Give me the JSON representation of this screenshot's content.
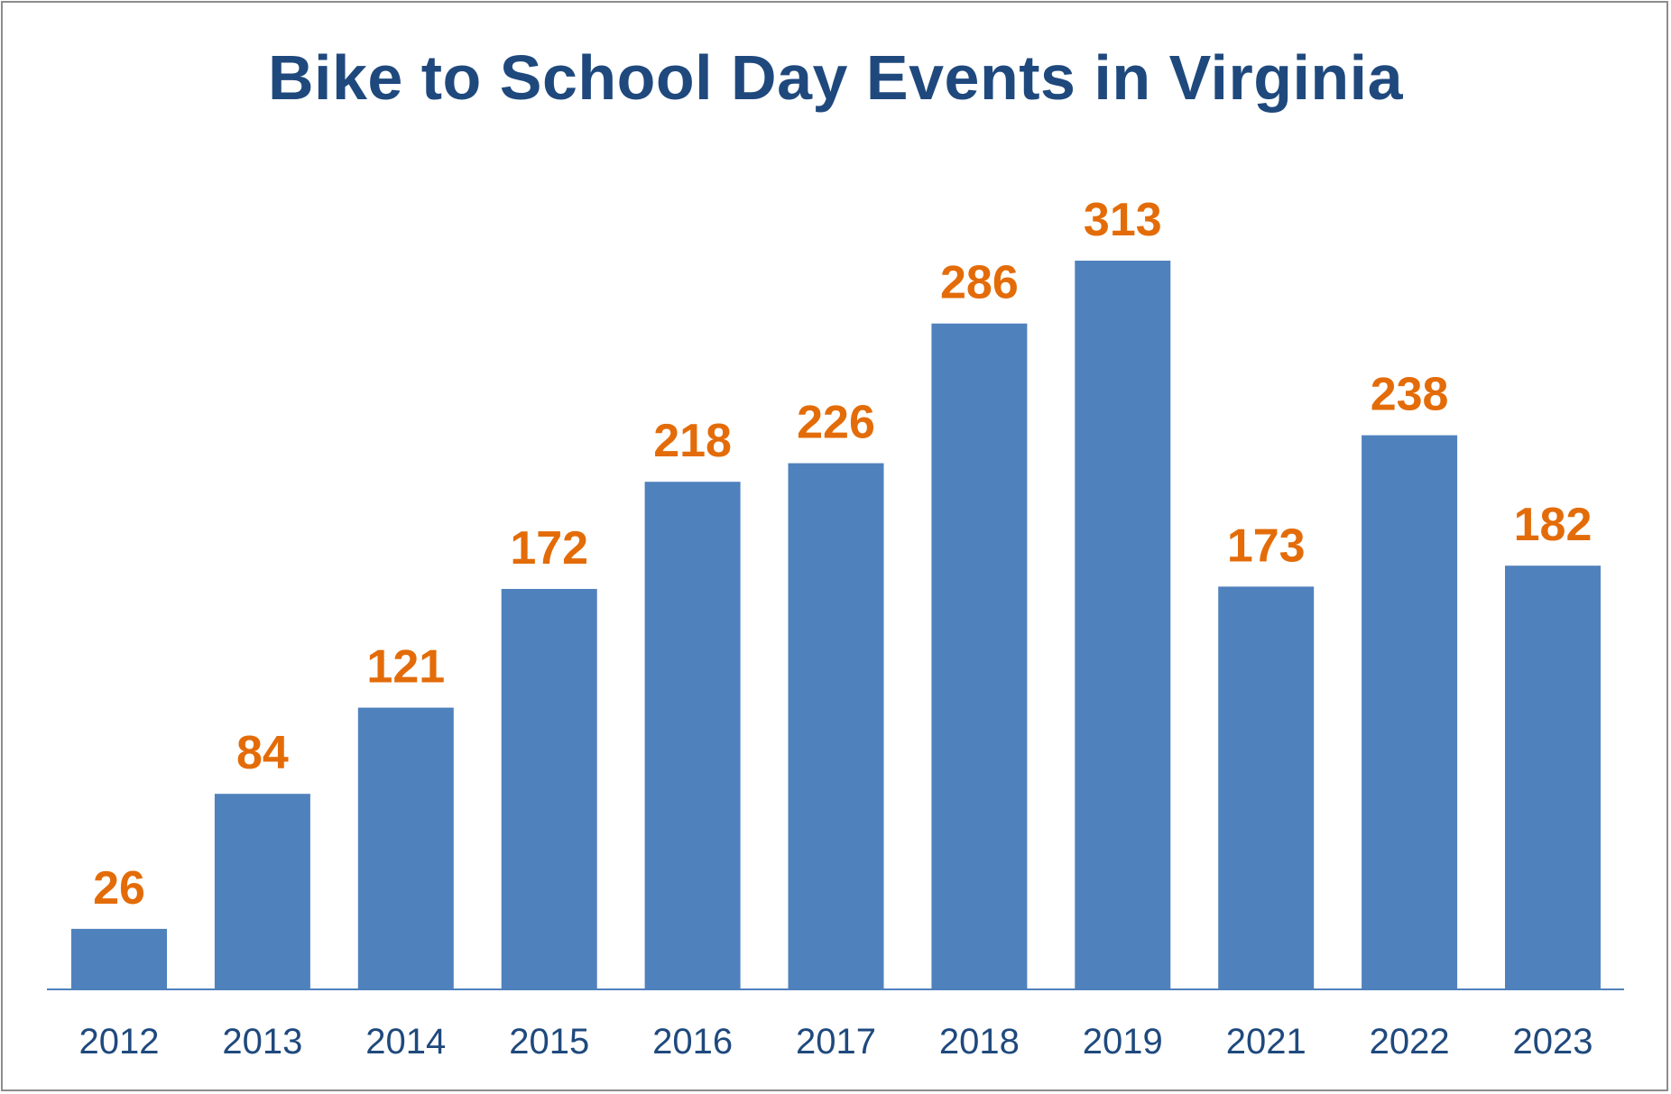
{
  "chart_data": {
    "type": "bar",
    "title": "Bike to School Day Events in Virginia",
    "xlabel": "",
    "ylabel": "",
    "categories": [
      "2012",
      "2013",
      "2014",
      "2015",
      "2016",
      "2017",
      "2018",
      "2019",
      "2021",
      "2022",
      "2023"
    ],
    "values": [
      26,
      84,
      121,
      172,
      218,
      226,
      286,
      313,
      173,
      238,
      182
    ],
    "ylim": [
      0,
      313
    ],
    "grid": false,
    "legend": "none",
    "data_labels": true,
    "colors": {
      "bar": "#4f81bd",
      "value_label": "#e36c09",
      "title": "#1f497d",
      "tick_label": "#1f497d",
      "axis": "#4f81bd"
    }
  }
}
